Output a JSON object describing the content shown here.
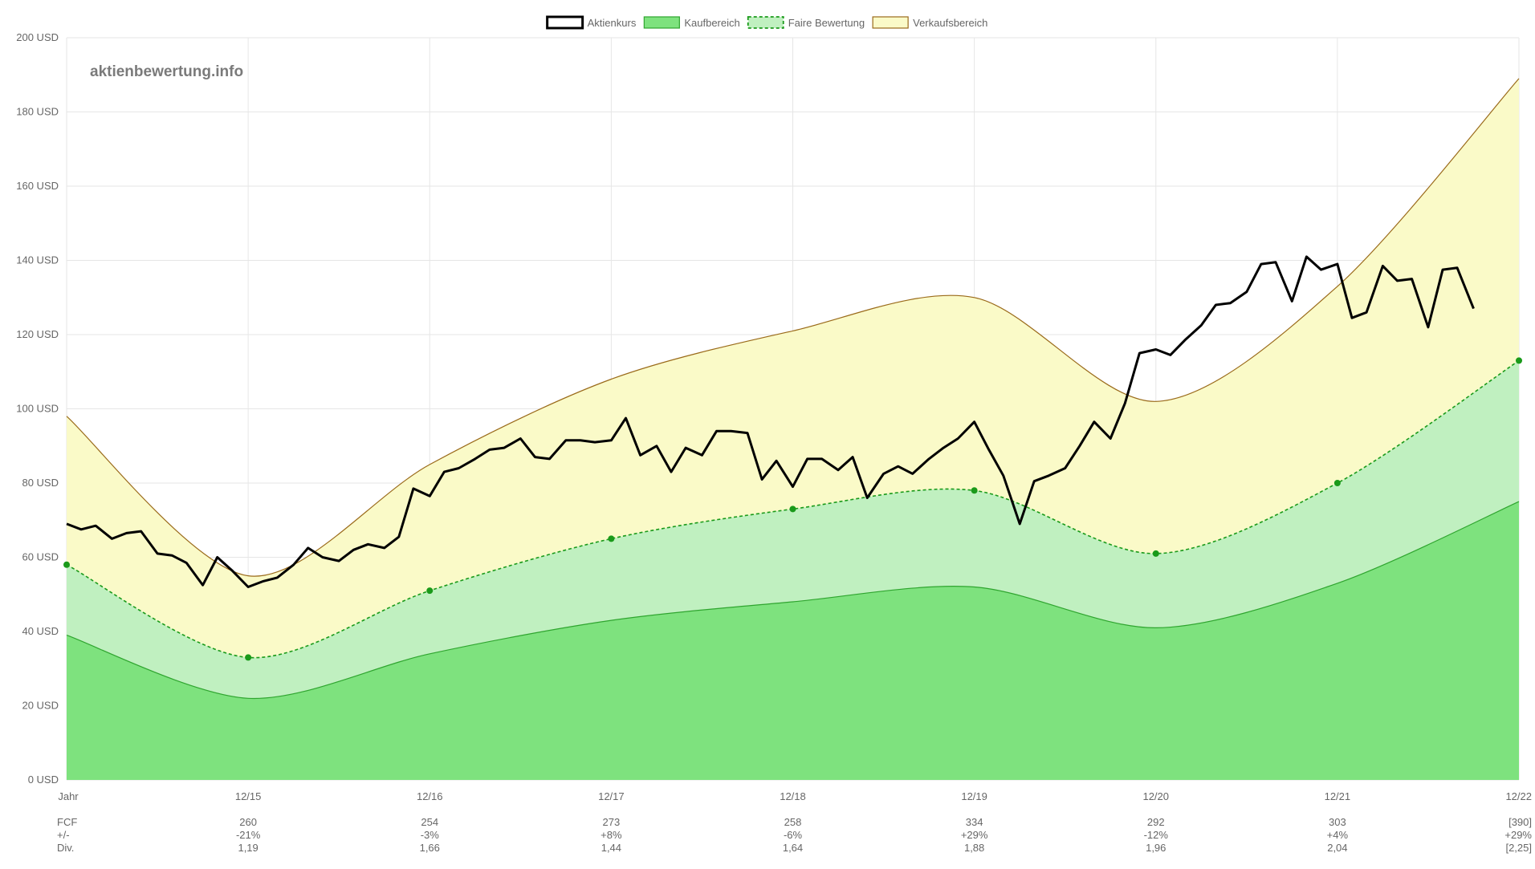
{
  "watermark": "aktienbewertung.info",
  "colors": {
    "kurs": "#000000",
    "kauf_fill": "#7ee27e",
    "kauf_line": "#2fa52f",
    "fair_fill": "#c0f0c0",
    "fair_line": "#1a9a1a",
    "verkauf_fill": "#fafac8",
    "verkauf_line": "#9a6a1a",
    "grid": "#e6e6e6",
    "text": "#666666"
  },
  "chart_data": {
    "type": "line",
    "ylim": [
      0,
      200
    ],
    "y_ticks": [
      0,
      20,
      40,
      60,
      80,
      100,
      120,
      140,
      160,
      180,
      200
    ],
    "y_tick_labels": [
      "0 USD",
      "20 USD",
      "40 USD",
      "60 USD",
      "80 USD",
      "100 USD",
      "120 USD",
      "140 USD",
      "160 USD",
      "180 USD",
      "200 USD"
    ],
    "x_ticks": [
      2014.96,
      2015.96,
      2016.96,
      2017.96,
      2018.96,
      2019.96,
      2020.96,
      2021.96,
      2022.96
    ],
    "x_tick_labels": [
      "Jahr",
      "12/15",
      "12/16",
      "12/17",
      "12/18",
      "12/19",
      "12/20",
      "12/21",
      "12/22"
    ],
    "legend": [
      {
        "label": "Aktienkurs",
        "key": "kurs"
      },
      {
        "label": "Kaufbereich",
        "key": "kauf"
      },
      {
        "label": "Faire Bewertung",
        "key": "fair"
      },
      {
        "label": "Verkaufsbereich",
        "key": "verkauf"
      }
    ],
    "legend_position": "top-center",
    "grid": true,
    "bands": {
      "x": [
        2014.96,
        2015.96,
        2016.96,
        2017.96,
        2018.96,
        2019.96,
        2020.96,
        2021.96,
        2022.96
      ],
      "kaufbereich": [
        39,
        22,
        34,
        43,
        48,
        52,
        41,
        53,
        75
      ],
      "faire_bewertung": [
        58,
        33,
        51,
        65,
        73,
        78,
        61,
        80,
        113
      ],
      "verkaufsbereich": [
        98,
        55,
        85,
        108,
        121,
        130,
        102,
        133,
        189
      ]
    },
    "series": [
      {
        "name": "Aktienkurs",
        "x": [
          2014.96,
          2015.04,
          2015.12,
          2015.21,
          2015.29,
          2015.37,
          2015.46,
          2015.54,
          2015.62,
          2015.71,
          2015.79,
          2015.87,
          2015.96,
          2016.04,
          2016.12,
          2016.21,
          2016.29,
          2016.37,
          2016.46,
          2016.54,
          2016.62,
          2016.71,
          2016.79,
          2016.87,
          2016.96,
          2017.04,
          2017.12,
          2017.21,
          2017.29,
          2017.37,
          2017.46,
          2017.54,
          2017.62,
          2017.71,
          2017.79,
          2017.87,
          2017.96,
          2018.04,
          2018.12,
          2018.21,
          2018.29,
          2018.37,
          2018.46,
          2018.54,
          2018.62,
          2018.71,
          2018.79,
          2018.87,
          2018.96,
          2019.04,
          2019.12,
          2019.21,
          2019.29,
          2019.37,
          2019.46,
          2019.54,
          2019.62,
          2019.71,
          2019.79,
          2019.87,
          2019.96,
          2020.04,
          2020.12,
          2020.21,
          2020.29,
          2020.37,
          2020.46,
          2020.54,
          2020.62,
          2020.71,
          2020.79,
          2020.87,
          2020.96,
          2021.04,
          2021.12,
          2021.21,
          2021.29,
          2021.37,
          2021.46,
          2021.54,
          2021.62,
          2021.71,
          2021.79,
          2021.87,
          2021.96,
          2022.04,
          2022.12,
          2022.21,
          2022.29,
          2022.37,
          2022.46,
          2022.54,
          2022.62,
          2022.71
        ],
        "values": [
          69,
          67.5,
          68.5,
          65,
          66.5,
          67,
          61,
          60.5,
          58.5,
          52.5,
          60,
          56.5,
          52,
          53.5,
          54.5,
          58,
          62.5,
          60,
          59,
          62,
          63.5,
          62.5,
          65.5,
          78.5,
          76.5,
          83,
          84,
          86.5,
          89,
          89.5,
          92,
          87,
          86.5,
          91.5,
          91.5,
          91,
          91.5,
          97.5,
          87.5,
          90,
          83,
          89.5,
          87.5,
          94,
          94,
          93.5,
          81,
          86,
          79,
          86.5,
          86.5,
          83.5,
          87,
          76,
          82.5,
          84.5,
          82.5,
          86.5,
          89.5,
          92,
          96.5,
          89,
          82,
          69,
          80.5,
          82,
          84,
          90,
          96.5,
          92,
          101.5,
          115,
          116,
          114.5,
          118.5,
          122.5,
          128,
          128.5,
          131.5,
          139,
          139.5,
          129,
          141,
          137.5,
          139,
          124.5,
          126,
          138.5,
          134.5,
          135,
          122,
          137.5,
          138,
          127
        ]
      }
    ],
    "annotations": {
      "rows": [
        {
          "label": "FCF",
          "values": [
            "260",
            "254",
            "273",
            "258",
            "334",
            "292",
            "303",
            "[390]"
          ]
        },
        {
          "label": "+/-",
          "values": [
            "-21%",
            "-3%",
            "+8%",
            "-6%",
            "+29%",
            "-12%",
            "+4%",
            "+29%"
          ]
        },
        {
          "label": "Div.",
          "values": [
            "1,19",
            "1,66",
            "1,44",
            "1,64",
            "1,88",
            "1,96",
            "2,04",
            "[2,25]"
          ]
        }
      ]
    }
  }
}
